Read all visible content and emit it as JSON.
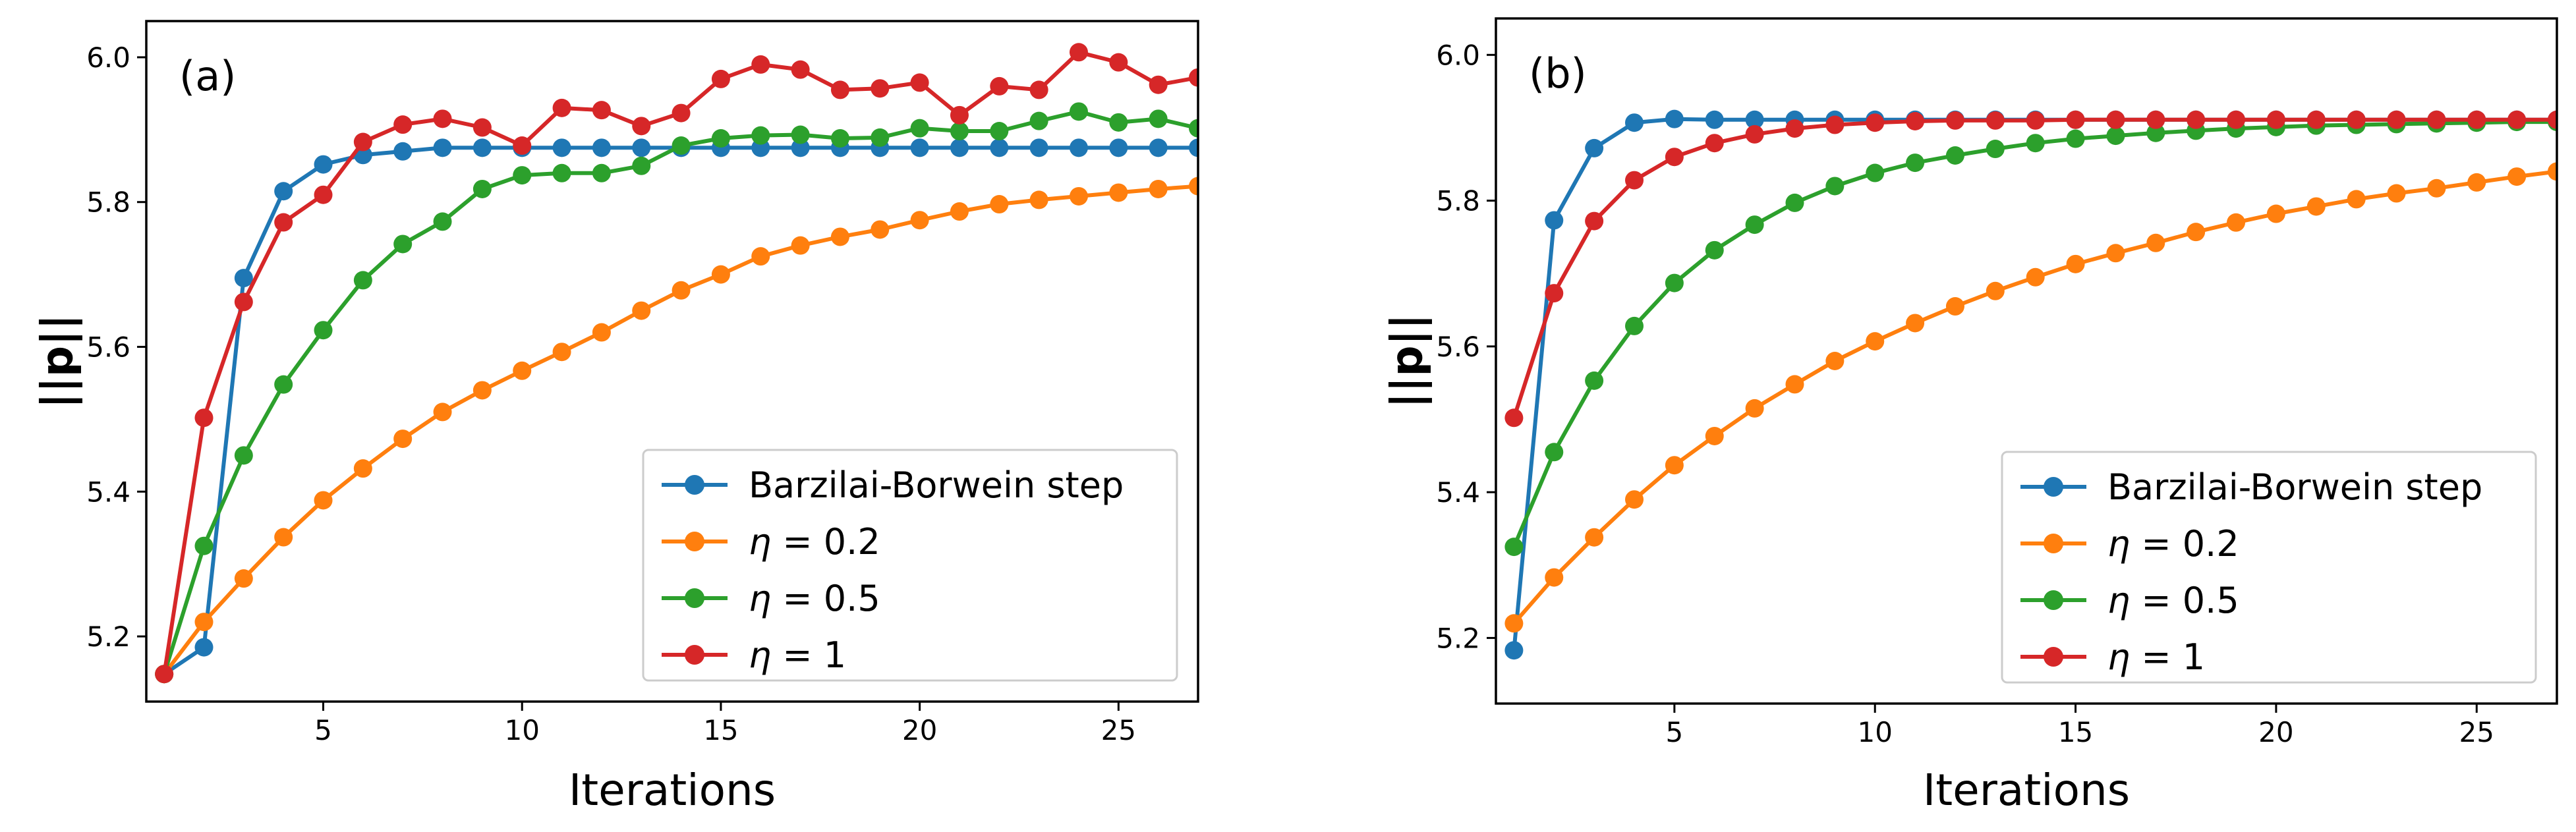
{
  "chart_data": [
    {
      "type": "line",
      "panel_label": "(a)",
      "xlabel": "Iterations",
      "ylabel": "||p||",
      "xlim": [
        0.55,
        27
      ],
      "ylim": [
        5.11,
        6.05
      ],
      "xticks": [
        5,
        10,
        15,
        20,
        25
      ],
      "yticks": [
        5.2,
        5.4,
        5.6,
        5.8,
        6.0
      ],
      "ytick_labels": [
        "5.2",
        "5.4",
        "5.6",
        "5.8",
        "6.0"
      ],
      "legend_position": "lower-right",
      "x": [
        1,
        2,
        3,
        4,
        5,
        6,
        7,
        8,
        9,
        10,
        11,
        12,
        13,
        14,
        15,
        16,
        17,
        18,
        19,
        20,
        21,
        22,
        23,
        24,
        25,
        26,
        27
      ],
      "series": [
        {
          "name": "Barzilai-Borwein step",
          "legend_prefix": "",
          "legend_value": "",
          "color": "#1f77b4",
          "values": [
            5.148,
            5.185,
            5.695,
            5.815,
            5.852,
            5.865,
            5.87,
            5.875,
            5.875,
            5.875,
            5.875,
            5.875,
            5.875,
            5.875,
            5.875,
            5.875,
            5.875,
            5.875,
            5.875,
            5.875,
            5.875,
            5.875,
            5.875,
            5.875,
            5.875,
            5.875,
            5.875
          ]
        },
        {
          "name": "",
          "legend_prefix": "η",
          "legend_value": " = 0.2",
          "color": "#ff7f0e",
          "values": [
            5.148,
            5.22,
            5.28,
            5.337,
            5.388,
            5.432,
            5.473,
            5.51,
            5.54,
            5.567,
            5.593,
            5.62,
            5.65,
            5.678,
            5.7,
            5.725,
            5.74,
            5.752,
            5.762,
            5.775,
            5.787,
            5.797,
            5.803,
            5.808,
            5.813,
            5.818,
            5.822
          ]
        },
        {
          "name": "",
          "legend_prefix": "η",
          "legend_value": " = 0.5",
          "color": "#2ca02c",
          "values": [
            5.148,
            5.325,
            5.45,
            5.548,
            5.623,
            5.692,
            5.742,
            5.773,
            5.818,
            5.837,
            5.84,
            5.84,
            5.85,
            5.878,
            5.888,
            5.892,
            5.893,
            5.888,
            5.889,
            5.902,
            5.898,
            5.898,
            5.912,
            5.925,
            5.91,
            5.915,
            5.902
          ]
        },
        {
          "name": "",
          "legend_prefix": "η",
          "legend_value": " = 1",
          "color": "#d62728",
          "values": [
            5.148,
            5.502,
            5.662,
            5.772,
            5.81,
            5.883,
            5.907,
            5.915,
            5.903,
            5.878,
            5.93,
            5.927,
            5.905,
            5.923,
            5.97,
            5.99,
            5.983,
            5.955,
            5.957,
            5.965,
            5.92,
            5.96,
            5.955,
            6.007,
            5.993,
            5.962,
            5.972
          ]
        }
      ]
    },
    {
      "type": "line",
      "panel_label": "(b)",
      "xlabel": "Iterations",
      "ylabel": "||p||",
      "xlim": [
        0.55,
        27
      ],
      "ylim": [
        5.11,
        6.05
      ],
      "xticks": [
        5,
        10,
        15,
        20,
        25
      ],
      "yticks": [
        5.2,
        5.4,
        5.6,
        5.8,
        6.0
      ],
      "ytick_labels": [
        "5.2",
        "5.4",
        "5.6",
        "5.8",
        "6.0"
      ],
      "legend_position": "lower-right",
      "x": [
        1,
        2,
        3,
        4,
        5,
        6,
        7,
        8,
        9,
        10,
        11,
        12,
        13,
        14,
        15,
        16,
        17,
        18,
        19,
        20,
        21,
        22,
        23,
        24,
        25,
        26,
        27
      ],
      "series": [
        {
          "name": "Barzilai-Borwein step",
          "legend_prefix": "",
          "legend_value": "",
          "color": "#1f77b4",
          "values": [
            5.183,
            5.773,
            5.872,
            5.907,
            5.912,
            5.911,
            5.911,
            5.911,
            5.911,
            5.911,
            5.911,
            5.911,
            5.911,
            5.911,
            5.911,
            5.911,
            5.911,
            5.911,
            5.911,
            5.911,
            5.911,
            5.911,
            5.911,
            5.911,
            5.911,
            5.911,
            5.911
          ]
        },
        {
          "name": "",
          "legend_prefix": "η",
          "legend_value": " = 0.2",
          "color": "#ff7f0e",
          "values": [
            5.22,
            5.283,
            5.338,
            5.39,
            5.437,
            5.477,
            5.515,
            5.548,
            5.58,
            5.607,
            5.632,
            5.655,
            5.676,
            5.695,
            5.713,
            5.728,
            5.742,
            5.757,
            5.77,
            5.782,
            5.792,
            5.802,
            5.81,
            5.817,
            5.825,
            5.833,
            5.84
          ]
        },
        {
          "name": "",
          "legend_prefix": "η",
          "legend_value": " = 0.5",
          "color": "#2ca02c",
          "values": [
            5.325,
            5.455,
            5.553,
            5.628,
            5.687,
            5.732,
            5.767,
            5.797,
            5.82,
            5.838,
            5.852,
            5.862,
            5.871,
            5.879,
            5.885,
            5.889,
            5.893,
            5.896,
            5.899,
            5.901,
            5.903,
            5.904,
            5.905,
            5.906,
            5.907,
            5.908,
            5.908
          ]
        },
        {
          "name": "",
          "legend_prefix": "η",
          "legend_value": " = 1",
          "color": "#d62728",
          "values": [
            5.502,
            5.673,
            5.772,
            5.828,
            5.86,
            5.879,
            5.891,
            5.899,
            5.904,
            5.907,
            5.909,
            5.91,
            5.91,
            5.91,
            5.911,
            5.911,
            5.911,
            5.911,
            5.911,
            5.911,
            5.911,
            5.911,
            5.911,
            5.911,
            5.911,
            5.911,
            5.911
          ]
        }
      ]
    }
  ]
}
